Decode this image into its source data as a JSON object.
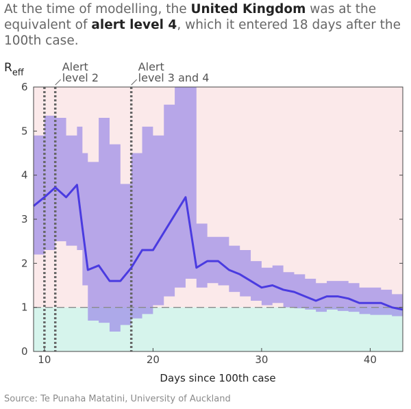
{
  "headline": {
    "pre": "At the time of modelling, the ",
    "country": "United Kingdom",
    "mid": " was at the equivalent of ",
    "level": "alert level 4",
    "post": ", which it entered 18 days after the 100th case."
  },
  "source": "Source: Te Punaha Matatini, University of Auckland",
  "colors": {
    "above_threshold_bg": "#fbe9ea",
    "below_threshold_bg": "#d6f4ec",
    "interval_fill": "#9d8ce8",
    "line": "#4a3be0",
    "threshold": "#8a8a8a",
    "alert_line": "#666666"
  },
  "chart_data": {
    "type": "line",
    "xlabel": "Days since 100th case",
    "ylabel_main": "R",
    "ylabel_sub": "eff",
    "xlim": [
      9,
      43
    ],
    "ylim": [
      0,
      6
    ],
    "xticks": [
      10,
      20,
      30,
      40
    ],
    "yticks": [
      0,
      1,
      2,
      3,
      4,
      5,
      6
    ],
    "threshold": 1,
    "alerts": [
      {
        "day": 10,
        "label_lines": []
      },
      {
        "day": 11,
        "label_lines": [
          "Alert",
          "level 2"
        ]
      },
      {
        "day": 18,
        "label_lines": [
          "Alert",
          "level 3 and 4"
        ]
      }
    ],
    "series": [
      {
        "x": [
          9,
          10,
          11,
          12,
          13,
          13.5,
          14,
          15,
          16,
          17,
          18,
          19,
          20,
          21,
          22,
          23,
          24,
          25,
          26,
          27,
          28,
          29,
          30,
          31,
          32,
          33,
          34,
          35,
          36,
          37,
          38,
          39,
          40,
          41,
          42,
          43
        ],
        "y": [
          3.3,
          3.5,
          3.72,
          3.5,
          3.78,
          2.8,
          1.85,
          1.95,
          1.6,
          1.6,
          1.9,
          2.3,
          2.3,
          2.7,
          3.1,
          3.5,
          1.9,
          2.05,
          2.05,
          1.85,
          1.75,
          1.6,
          1.45,
          1.5,
          1.4,
          1.35,
          1.25,
          1.15,
          1.25,
          1.25,
          1.2,
          1.1,
          1.1,
          1.1,
          1.0,
          0.95
        ],
        "lower": [
          2.2,
          2.3,
          2.5,
          2.4,
          2.3,
          1.5,
          0.7,
          0.65,
          0.45,
          0.6,
          0.75,
          0.85,
          1.05,
          1.25,
          1.45,
          1.65,
          1.45,
          1.55,
          1.5,
          1.35,
          1.25,
          1.15,
          1.05,
          1.1,
          1.0,
          0.98,
          0.95,
          0.9,
          0.95,
          0.92,
          0.9,
          0.85,
          0.83,
          0.83,
          0.8,
          0.78
        ],
        "upper": [
          4.9,
          5.35,
          5.3,
          4.9,
          5.1,
          4.5,
          4.3,
          5.3,
          4.7,
          3.8,
          4.5,
          5.1,
          4.9,
          5.6,
          6.0,
          6.0,
          2.9,
          2.6,
          2.6,
          2.4,
          2.3,
          2.05,
          1.9,
          1.95,
          1.8,
          1.75,
          1.65,
          1.55,
          1.6,
          1.6,
          1.55,
          1.45,
          1.45,
          1.4,
          1.3,
          1.2
        ]
      }
    ]
  }
}
